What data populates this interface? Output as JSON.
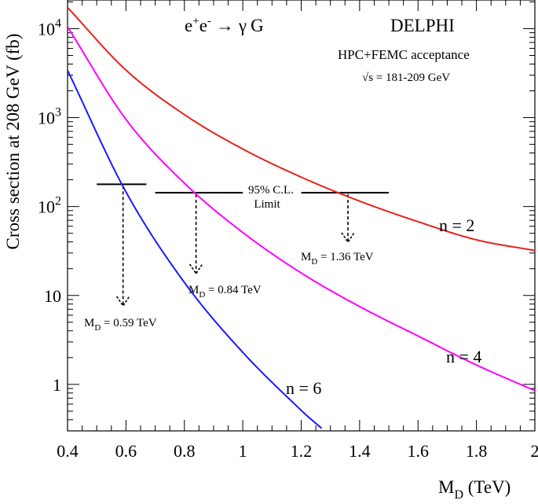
{
  "chart_data": {
    "type": "line",
    "title": "",
    "process": {
      "base": "e",
      "plus": "+",
      "minus": "-",
      "arrow": "→",
      "gamma": "γ",
      "graviton": "G"
    },
    "experiment": "DELPHI",
    "acceptance": "HPC+FEMC acceptance",
    "energy_label": {
      "sqrt": "√",
      "s": "s",
      "range": " = 181-209 GeV"
    },
    "xlabel": {
      "main": "M",
      "sub": "D",
      "unit": " (TeV)"
    },
    "ylabel": "Cross section at 208 GeV (fb)",
    "xlim": [
      0.4,
      2.0
    ],
    "ylim": [
      0.3,
      21000
    ],
    "y_scale": "log",
    "grid": false,
    "x_ticks": [
      {
        "value": 0.4,
        "label": "0.4"
      },
      {
        "value": 0.6,
        "label": "0.6"
      },
      {
        "value": 0.8,
        "label": "0.8"
      },
      {
        "value": 1.0,
        "label": "1"
      },
      {
        "value": 1.2,
        "label": "1.2"
      },
      {
        "value": 1.4,
        "label": "1.4"
      },
      {
        "value": 1.6,
        "label": "1.6"
      },
      {
        "value": 1.8,
        "label": "1.8"
      },
      {
        "value": 2.0,
        "label": "2"
      }
    ],
    "y_ticks": [
      {
        "value": 1,
        "label": "1"
      },
      {
        "value": 10,
        "label": "10"
      },
      {
        "value": 100,
        "base": "10",
        "exp": "2"
      },
      {
        "value": 1000,
        "base": "10",
        "exp": "3"
      },
      {
        "value": 10000,
        "base": "10",
        "exp": "4"
      }
    ],
    "series": [
      {
        "name": "n = 2",
        "color": "#e8231b",
        "n": 2,
        "xmax": 2.0,
        "x": [
          0.4,
          0.6,
          0.8,
          1.0,
          1.2,
          1.4,
          1.6,
          1.8,
          2.0
        ],
        "values": [
          17300,
          3420,
          1080,
          443,
          214,
          115,
          67.5,
          42.2,
          32.0
        ]
      },
      {
        "name": "n = 4",
        "color": "#ff00ff",
        "n": 4,
        "xmax": 2.0,
        "x": [
          0.4,
          0.6,
          0.8,
          1.0,
          1.2,
          1.4,
          1.6,
          1.8,
          2.0
        ],
        "values": [
          10500,
          955,
          183,
          51.0,
          17.9,
          7.5,
          3.5,
          1.65,
          0.85
        ]
      },
      {
        "name": "n = 6",
        "color": "#1a1aff",
        "n": 6,
        "xmax": 1.27,
        "x": [
          0.4,
          0.6,
          0.8,
          1.0,
          1.2,
          1.27
        ],
        "values": [
          3400,
          146,
          14.0,
          2.29,
          0.51,
          0.32
        ]
      }
    ],
    "limit_label": {
      "line1": "95% C.L.",
      "line2": "Limit"
    },
    "limits": [
      {
        "series": "n = 6",
        "md": 0.59,
        "sigma": 178,
        "text": " = 0.59 TeV",
        "xa": 0.5,
        "xb": 0.67
      },
      {
        "series": "n = 4",
        "md": 0.84,
        "sigma": 143,
        "text": " = 0.84 TeV",
        "xa": 0.7,
        "xb": 1.0
      },
      {
        "series": "n = 2",
        "md": 1.36,
        "sigma": 143,
        "text": " = 1.36 TeV",
        "xa": 1.2,
        "xb": 1.5
      }
    ]
  }
}
